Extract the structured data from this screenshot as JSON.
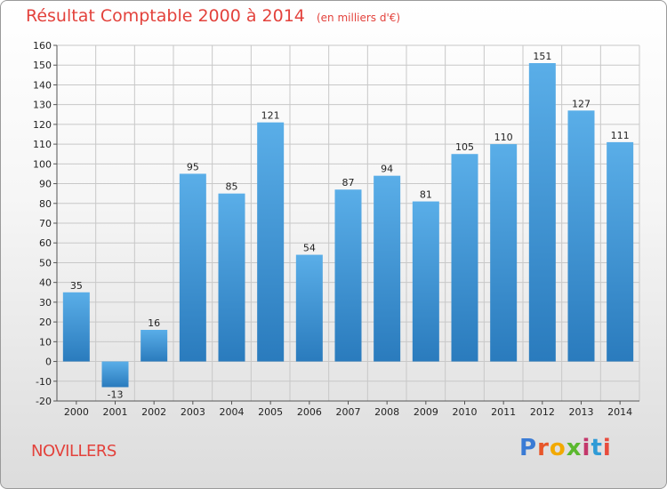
{
  "title": "Résultat Comptable 2000 à 2014",
  "subtitle": "(en milliers d'€)",
  "commune": "NOVILLERS",
  "logo": {
    "text": "Proxiti",
    "colors": [
      "#3a7bd5",
      "#e8562a",
      "#f2a900",
      "#5bb82e",
      "#c3386b",
      "#2f9bd6",
      "#e84c3d"
    ]
  },
  "colors": {
    "bar_top": "#5aaee8",
    "bar_bottom": "#2a7bbd",
    "title": "#e3423c"
  },
  "chart_data": {
    "type": "bar",
    "categories": [
      "2000",
      "2001",
      "2002",
      "2003",
      "2004",
      "2005",
      "2006",
      "2007",
      "2008",
      "2009",
      "2010",
      "2011",
      "2012",
      "2013",
      "2014"
    ],
    "values": [
      35,
      -13,
      16,
      95,
      85,
      121,
      54,
      87,
      94,
      81,
      105,
      110,
      151,
      127,
      111
    ],
    "ylim": [
      -20,
      160
    ],
    "yticks": [
      -20,
      -10,
      0,
      10,
      20,
      30,
      40,
      50,
      60,
      70,
      80,
      90,
      100,
      110,
      120,
      130,
      140,
      150,
      160
    ],
    "grid": true
  }
}
